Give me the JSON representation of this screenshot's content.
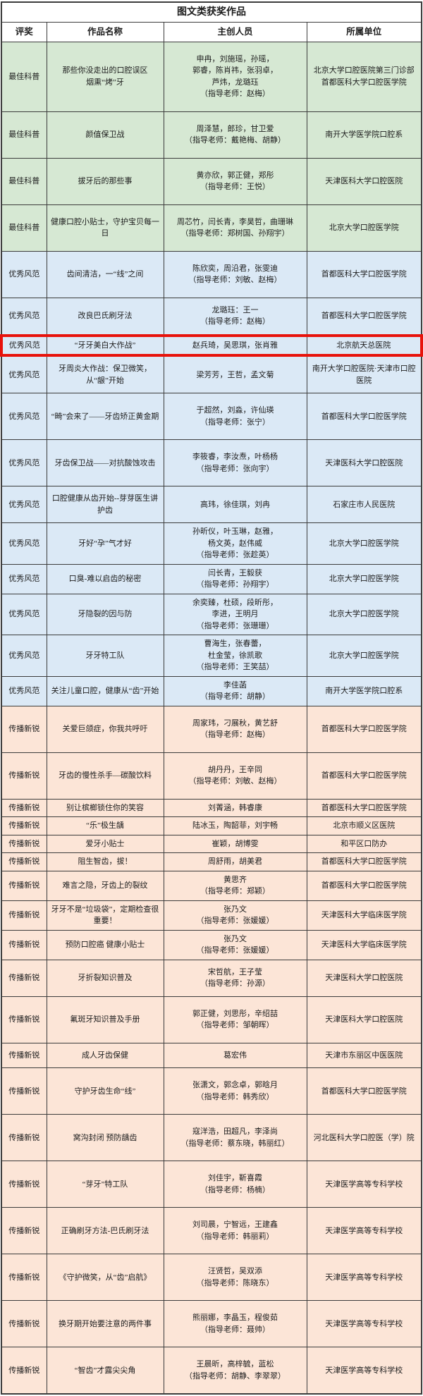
{
  "title": "图文类获奖作品",
  "columns": [
    "评奖",
    "作品名称",
    "主创人员",
    "所属单位"
  ],
  "colors": {
    "best_bg": "#d6e8d3",
    "excellent_bg": "#dbe9f6",
    "newcomer_bg": "#fce5d7",
    "highlight_border": "#e8120b"
  },
  "rows": [
    {
      "award": "最佳科普",
      "group": "best",
      "size": "roomy",
      "work": "那些你没走出的口腔误区\n烟熏“烤”牙",
      "creators": "申冉，刘施瑶，孙瑶，\n郭睿，陈肖祎，张羽卓，\n芦炜，龙璐珏\n（指导老师：赵梅）",
      "unit": "北京大学口腔医院第三门诊部\n首都医科大学口腔医学院"
    },
    {
      "award": "最佳科普",
      "group": "best",
      "size": "roomy",
      "work": "颜值保卫战",
      "creators": "周泽慧，郎珍，甘卫爱\n（指导老师：戴艳梅、胡静）",
      "unit": "南开大学医学院口腔系"
    },
    {
      "award": "最佳科普",
      "group": "best",
      "size": "roomy",
      "work": "拔牙后的那些事",
      "creators": "黄亦欣，郭正健，郑彤\n（指导老师：王悦）",
      "unit": "天津医科大学口腔医院"
    },
    {
      "award": "最佳科普",
      "group": "best",
      "size": "roomy",
      "work": "健康口腔小贴士，守护宝贝每一日",
      "creators": "周芯竹，闫长青，李昊哲，曲珊琳\n（指导老师：郑树国、孙翔宇）",
      "unit": "北京大学口腔医学院"
    },
    {
      "award": "优秀风范",
      "group": "excellent",
      "size": "roomy",
      "work": "齿间清洁，一“线”之间",
      "creators": "陈欣奕，周沿君，张雯迪\n（指导老师：刘敏、赵梅）",
      "unit": "首都医科大学口腔医学院"
    },
    {
      "award": "优秀风范",
      "group": "excellent",
      "size": "mid",
      "work": "改良巴氏刷牙法",
      "creators": "龙璐珏：王一\n（指导老师：赵梅）",
      "unit": "首都医科大学口腔医学院"
    },
    {
      "award": "优秀风范",
      "group": "excellent",
      "highlight": true,
      "work": "“牙牙美白大作战”",
      "creators": "赵兵琦，吴思琪，张肖雅",
      "unit": "北京航天总医院"
    },
    {
      "award": "优秀风范",
      "group": "excellent",
      "size": "mid",
      "work": "牙周炎大作战：保卫微笑，从“龈”开始",
      "creators": "梁芳芳，王哲，孟文菊",
      "unit": "南开大学口腔医院·天津市口腔医院"
    },
    {
      "award": "优秀风范",
      "group": "excellent",
      "size": "roomy",
      "work": "“畸”会来了——牙齿矫正黄金期",
      "creators": "于超然，刘淼，许仙瑛\n（指导老师：张宁）",
      "unit": "首都医科大学口腔医学院"
    },
    {
      "award": "优秀风范",
      "group": "excellent",
      "size": "roomy",
      "work": "牙齿保卫战——对抗酸蚀攻击",
      "creators": "李筱睿，李汝焘，叶杨杨\n（指导老师：张向宇）",
      "unit": "天津医科大学口腔医院"
    },
    {
      "award": "优秀风范",
      "group": "excellent",
      "size": "mid",
      "work": "口腔健康从齿开始--芽芽医生讲护齿",
      "creators": "高玮，徐佳琪，刘冉",
      "unit": "石家庄市人民医院"
    },
    {
      "award": "优秀风范",
      "group": "excellent",
      "work": "牙好“孕”气才好",
      "creators": "孙昕仪，叶玉琳，赵雅，\n杨文英，赵伟威\n（指导老师：张趁英）",
      "unit": "北京大学口腔医学院"
    },
    {
      "award": "优秀风范",
      "group": "excellent",
      "work": "口臭-难以启齿的秘密",
      "creators": "闫长青，王毅获\n（指导老师：孙翔宇）",
      "unit": "北京大学口腔医学院"
    },
    {
      "award": "优秀风范",
      "group": "excellent",
      "work": "牙隐裂的因与防",
      "creators": "余奕臻，杜硕，段昕彤，\n李进，王明月\n（指导老师：张珊珊）",
      "unit": "北京大学口腔医学院"
    },
    {
      "award": "优秀风范",
      "group": "excellent",
      "work": "牙牙特工队",
      "creators": "曹海生，张春蕾，\n杜金莹，徐凯歌\n（指导老师：王笑喆）",
      "unit": "北京大学口腔医学院"
    },
    {
      "award": "优秀风范",
      "group": "excellent",
      "work": "关注儿童口腔，健康从“齿”开始",
      "creators": "李佳菡\n（指导老师：胡静）",
      "unit": "南开大学医学院口腔系"
    },
    {
      "award": "传播新锐",
      "group": "newcomer",
      "size": "roomy",
      "work": "关爱巨颌症，你我共呼吁",
      "creators": "周家玮，刁展秋，黄艺舒\n（指导老师：赵梅）",
      "unit": "首都医科大学口腔医学院"
    },
    {
      "award": "传播新锐",
      "group": "newcomer",
      "size": "roomy",
      "work": "牙齿的慢性杀手—碳酸饮料",
      "creators": "胡丹丹，王辛同\n（指导老师：刘敏、赵梅）",
      "unit": "首都医科大学口腔医学院"
    },
    {
      "award": "传播新锐",
      "group": "newcomer",
      "work": "别让槟榔锁住你的笑容",
      "creators": "刘菁涵，韩睿康",
      "unit": "首都医科大学口腔医学院"
    },
    {
      "award": "传播新锐",
      "group": "newcomer",
      "work": "“乐”极生龋",
      "creators": "陆冰玉，陶韶菲，刘宇畅",
      "unit": "北京市顺义区医院"
    },
    {
      "award": "传播新锐",
      "group": "newcomer",
      "work": "爱牙小贴士",
      "creators": "崔颖，胡博雯",
      "unit": "和平区口防办"
    },
    {
      "award": "传播新锐",
      "group": "newcomer",
      "work": "阻生智齿，拔！",
      "creators": "周舒雨，胡美君",
      "unit": "首都医科大学口腔医学院"
    },
    {
      "award": "传播新锐",
      "group": "newcomer",
      "work": "难言之隐，牙齿上的裂纹",
      "creators": "黄思齐\n（指导老师：郑颖）",
      "unit": "首都医科大学口腔医学院"
    },
    {
      "award": "传播新锐",
      "group": "newcomer",
      "work": "牙牙不是“垃圾袋”，定期检查很重要！",
      "creators": "张乃文\n（指导老师：张媛媛）",
      "unit": "天津医科大学临床医学院"
    },
    {
      "award": "传播新锐",
      "group": "newcomer",
      "work": "预防口腔癌 健康小贴士",
      "creators": "张乃文\n（指导老师：张媛媛）",
      "unit": "天津医科大学临床医学院"
    },
    {
      "award": "传播新锐",
      "group": "newcomer",
      "size": "mid",
      "work": "牙折裂知识普及",
      "creators": "宋哲航，王子莹\n（指导老师：孙源）",
      "unit": "天津医科大学口腔医院"
    },
    {
      "award": "传播新锐",
      "group": "newcomer",
      "size": "roomy",
      "work": "氟斑牙知识普及手册",
      "creators": "郭正健，刘思彤，辛绍喆\n（指导老师：邹朝晖）",
      "unit": "天津医科大学口腔医院"
    },
    {
      "award": "传播新锐",
      "group": "newcomer",
      "size": "mid",
      "work": "成人牙齿保健",
      "creators": "葛宏伟",
      "unit": "天津市东丽区中医医院"
    },
    {
      "award": "传播新锐",
      "group": "newcomer",
      "size": "roomy",
      "work": "守护牙齿生命“线”",
      "creators": "张潇文，郭念卓，郭晗月\n（指导老师：韩秀欣）",
      "unit": "首都医科大学口腔医学院"
    },
    {
      "award": "传播新锐",
      "group": "newcomer",
      "size": "roomy",
      "work": "窝沟封闭 预防龋齿",
      "creators": "寇洋浩，田超凡，李泽尚\n（指导老师：蔡东晓，韩丽红）",
      "unit": "河北医科大学口腔医（学）院"
    },
    {
      "award": "传播新锐",
      "group": "newcomer",
      "size": "roomy",
      "work": "“芽牙”特工队",
      "creators": "刘佳宇，靳喜霞\n（指导老师：杨楠）",
      "unit": "天津医学高等专科学校"
    },
    {
      "award": "传播新锐",
      "group": "newcomer",
      "size": "roomy",
      "work": "正确刷牙方法-巴氏刷牙法",
      "creators": "刘司晨，宁智远，王建鑫\n（指导老师：韩丽莉）",
      "unit": "天津医学高等专科学校"
    },
    {
      "award": "传播新锐",
      "group": "newcomer",
      "size": "roomy",
      "work": "《守护微笑，从“齿”启航》",
      "creators": "汪贤哲，吴双添\n（指导老师：陈晓东）",
      "unit": "天津医学高等专科学校"
    },
    {
      "award": "传播新锐",
      "group": "newcomer",
      "size": "roomy",
      "work": "换牙期开始要注意的两件事",
      "creators": "熊丽娜，李晶玉，程俊茹\n（指导老师：聂帅）",
      "unit": "天津医学高等专科学校"
    },
    {
      "award": "传播新锐",
      "group": "newcomer",
      "size": "roomy",
      "work": "“智齿”才露尖尖角",
      "creators": "王晨昕，高梓毓，蓝松\n（指导老师：胡静、李翠翠）",
      "unit": "天津医学高等专科学校"
    }
  ]
}
